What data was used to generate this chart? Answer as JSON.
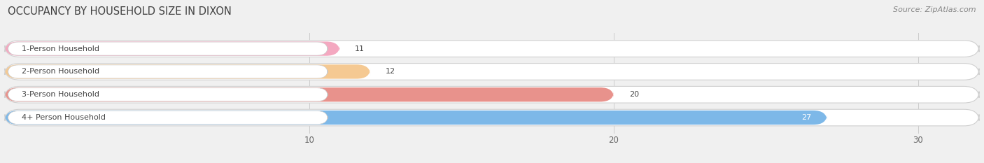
{
  "title": "OCCUPANCY BY HOUSEHOLD SIZE IN DIXON",
  "source": "Source: ZipAtlas.com",
  "categories": [
    "1-Person Household",
    "2-Person Household",
    "3-Person Household",
    "4+ Person Household"
  ],
  "values": [
    11,
    12,
    20,
    27
  ],
  "bar_colors": [
    "#f4a8c0",
    "#f5c992",
    "#e8928c",
    "#7db8e8"
  ],
  "xlim": [
    0,
    32
  ],
  "xticks": [
    10,
    20,
    30
  ],
  "background_color": "#f0f0f0",
  "title_fontsize": 10.5,
  "source_fontsize": 8,
  "label_fontsize": 8,
  "value_fontsize": 8,
  "tick_fontsize": 8.5
}
